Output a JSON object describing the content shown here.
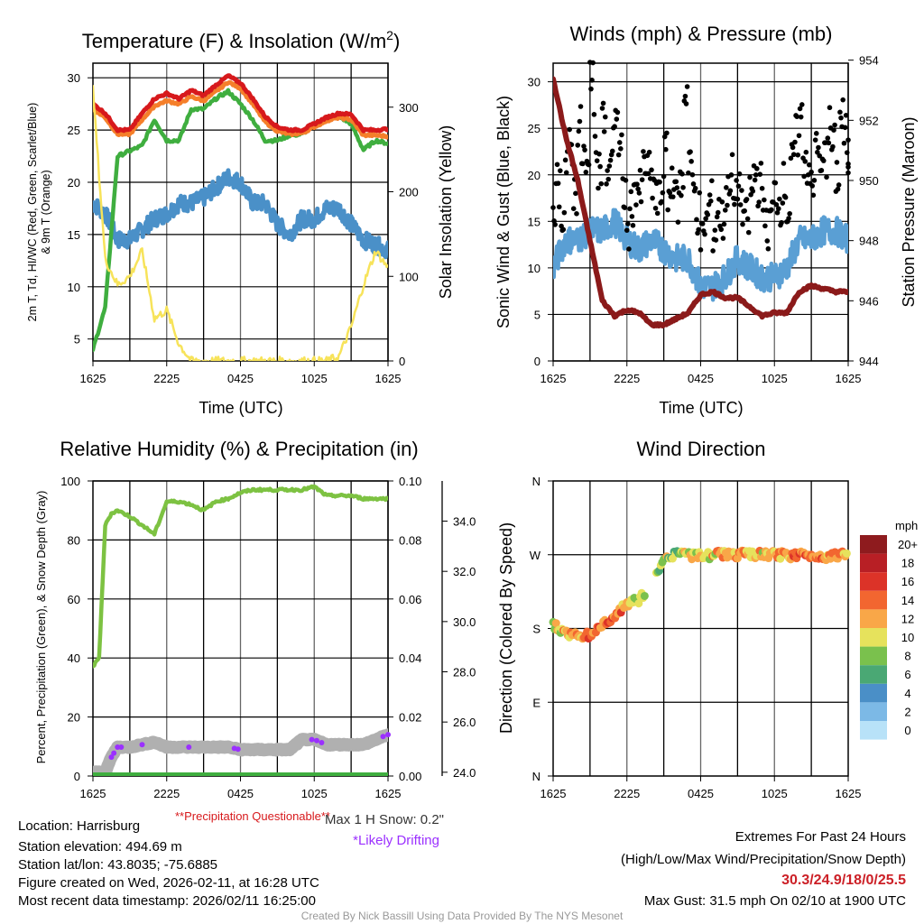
{
  "titles": {
    "temp": "Temperature (F) & Insolation (W/m",
    "temp_sup": "2",
    "temp_end": ")",
    "winds": "Winds (mph) & Pressure (mb)",
    "rh": "Relative Humidity (%) & Precipitation (in)",
    "wdir": "Wind Direction"
  },
  "axis_labels": {
    "time": "Time (UTC)",
    "temp_left_1": "2m T, Td, HI/WC (Red, Green, Scarlet/Blue)",
    "temp_left_2": "& 9m T (Orange)",
    "temp_right": "Solar Insolation (Yellow)",
    "wind_left": "Sonic Wind & Gust (Blue, Black)",
    "wind_right": "Station Pressure (Maroon)",
    "rh_left": "Percent, Precipitation (Green), & Snow Depth (Gray)",
    "wdir_left": "Direction (Colored By Speed)"
  },
  "notes": {
    "precip_questionable": "**Precipitation Questionable**",
    "max_snow": "Max 1 H Snow: 0.2\"",
    "drifting": "*Likely Drifting"
  },
  "info": {
    "location": "Location: Harrisburg",
    "elevation": "Station elevation: 494.69 m",
    "latlon": "Station lat/lon: 43.8035; -75.6885",
    "created": "Figure created on Wed, 2026-02-11, at 16:28 UTC",
    "recent": "Most recent data timestamp: 2026/02/11 16:25:00"
  },
  "extremes": {
    "heading": "Extremes For Past 24 Hours",
    "legend": "(High/Low/Max Wind/Precipitation/Snow Depth)",
    "values": "30.3/24.9/18/0/25.5",
    "max_gust": "Max Gust: 31.5 mph On 02/10 at 1900 UTC"
  },
  "credit": "Created By Nick Bassill Using Data Provided By The NYS Mesonet",
  "colors": {
    "temp2m": "#d7191c",
    "temp9m": "#f57f2a",
    "dewpoint": "#3fae3f",
    "windchill": "#4a90c8",
    "insolation": "#f7e35a",
    "wind": "#5a9fd4",
    "gust": "#000000",
    "pressure": "#8b1a1a",
    "rh": "#7dc242",
    "snow": "#b0b0b0",
    "drift": "#9b30ff",
    "precip": "#3fae3f",
    "extremes": "#cc2027"
  },
  "chart_data": [
    {
      "type": "line",
      "name": "temperature",
      "x_hours_since_start": [
        0,
        1,
        2,
        3,
        4,
        5,
        6,
        7,
        8,
        9,
        10,
        11,
        12,
        13,
        14,
        15,
        16,
        17,
        18,
        19,
        20,
        21,
        22,
        23,
        24
      ],
      "x_tick_labels": [
        "1625",
        "2225",
        "0425",
        "1025",
        "1625"
      ],
      "ylim": [
        2.9,
        31.4
      ],
      "y_ticks": [
        5,
        10,
        15,
        20,
        25,
        30
      ],
      "y2lim": [
        0,
        352
      ],
      "y2_ticks": [
        0,
        100,
        200,
        300
      ],
      "series": [
        {
          "name": "2m T",
          "color": "#d7191c",
          "values": [
            27.5,
            26.6,
            25,
            25,
            26.6,
            28,
            28.5,
            28,
            28.8,
            28.3,
            29.3,
            30.2,
            29.5,
            28,
            26.3,
            25.3,
            25,
            25,
            25.6,
            26.2,
            26.6,
            26.5,
            25,
            25,
            25.1
          ]
        },
        {
          "name": "9m T",
          "color": "#f57f2a",
          "values": [
            27,
            26.2,
            24.6,
            24.6,
            26,
            27.3,
            27.8,
            27.5,
            28.2,
            27.8,
            28.7,
            29.6,
            29,
            27.5,
            25.8,
            24.9,
            24.6,
            24.7,
            25.3,
            25.9,
            26.2,
            26,
            24.5,
            24.5,
            24.4
          ]
        },
        {
          "name": "Td",
          "color": "#3fae3f",
          "values": [
            4,
            8,
            22.5,
            23,
            23.5,
            26,
            24,
            24,
            27,
            27,
            28,
            28.7,
            27.5,
            26,
            24,
            24,
            24.5,
            24.6,
            25.5,
            26,
            26.3,
            25.6,
            23.1,
            24,
            23.7
          ]
        },
        {
          "name": "HI/WC",
          "color": "#4a90c8",
          "values": [
            18,
            17,
            14.5,
            14.5,
            15.5,
            16.5,
            17,
            18,
            18,
            18.5,
            19.5,
            20.5,
            20,
            18,
            18,
            16,
            15,
            16.5,
            16.5,
            17.5,
            17.5,
            16,
            14.5,
            14,
            13.5
          ]
        },
        {
          "name": "Solar Insolation",
          "axis": "right",
          "color": "#f7e35a",
          "values": [
            320,
            120,
            90,
            100,
            130,
            50,
            60,
            20,
            0,
            0,
            0,
            0,
            0,
            0,
            0,
            0,
            0,
            0,
            0,
            0,
            5,
            40,
            90,
            130,
            110
          ]
        }
      ]
    },
    {
      "type": "line+scatter",
      "name": "winds",
      "x_hours_since_start": [
        0,
        1,
        2,
        3,
        4,
        5,
        6,
        7,
        8,
        9,
        10,
        11,
        12,
        13,
        14,
        15,
        16,
        17,
        18,
        19,
        20,
        21,
        22,
        23,
        24
      ],
      "x_tick_labels": [
        "1625",
        "2225",
        "0425",
        "1025",
        "1625"
      ],
      "ylim": [
        0,
        32
      ],
      "y_ticks": [
        0,
        5,
        10,
        15,
        20,
        25,
        30
      ],
      "y2lim": [
        944,
        953.9
      ],
      "y2_ticks": [
        944,
        946,
        948,
        950,
        952,
        954
      ],
      "series": [
        {
          "name": "Sonic Wind",
          "color": "#5a9fd4",
          "values": [
            10,
            13,
            13,
            14,
            14,
            15,
            13,
            12,
            13,
            12,
            11,
            11,
            8,
            8,
            9,
            11,
            10,
            9,
            9,
            10,
            13,
            13,
            14,
            14,
            13
          ]
        },
        {
          "name": "Station Pressure",
          "axis": "right",
          "color": "#8b1a1a",
          "values": [
            953.4,
            951.5,
            950,
            948,
            946,
            945.5,
            945.7,
            945.6,
            945.2,
            945.2,
            945.4,
            945.6,
            946.2,
            946.3,
            946.1,
            946.1,
            945.8,
            945.5,
            945.6,
            945.6,
            946.3,
            946.5,
            946.4,
            946.3,
            946.3
          ]
        }
      ],
      "gust_every_20min": [
        17,
        19,
        16,
        21,
        23,
        18,
        25,
        22,
        20,
        31.5,
        24,
        21,
        26,
        19,
        23,
        27,
        22,
        18,
        14,
        17,
        19,
        18,
        21,
        20,
        19,
        17,
        18,
        22,
        18,
        20,
        17,
        19,
        29,
        22,
        18,
        16,
        13,
        15,
        17,
        14,
        16,
        15,
        18,
        20,
        17,
        19,
        16,
        15,
        18,
        20,
        19,
        17,
        14,
        16,
        18,
        17,
        19,
        16,
        21,
        24,
        26,
        22,
        21,
        18,
        24,
        20,
        22,
        25,
        23,
        20,
        26,
        24,
        22
      ]
    },
    {
      "type": "line",
      "name": "humidity",
      "x_hours_since_start": [
        0,
        0.5,
        1,
        1.5,
        2,
        3,
        4,
        5,
        6,
        7,
        8,
        9,
        10,
        11,
        12,
        13,
        14,
        15,
        16,
        17,
        18,
        19,
        20,
        21,
        22,
        23,
        24
      ],
      "x_tick_labels": [
        "1625",
        "2225",
        "0425",
        "1025",
        "1625"
      ],
      "ylim": [
        0,
        100
      ],
      "y_ticks": [
        0,
        20,
        40,
        60,
        80,
        100
      ],
      "y2lim": [
        0,
        0.1
      ],
      "y2_ticks": [
        "0.00",
        "0.02",
        "0.04",
        "0.06",
        "0.08",
        "0.10"
      ],
      "y3_ticks": [
        "24.0",
        "26.0",
        "28.0",
        "30.0",
        "32.0",
        "34.0"
      ],
      "series": [
        {
          "name": "Relative Humidity",
          "color": "#7dc242",
          "values": [
            37,
            40,
            85,
            89,
            90,
            88,
            85,
            82,
            93,
            93,
            92,
            90,
            93,
            94,
            96,
            97,
            97,
            97,
            97,
            97,
            98,
            95,
            95,
            95,
            94,
            94,
            94
          ]
        },
        {
          "name": "Snow Depth",
          "axis": "snow",
          "color": "#b0b0b0",
          "values": [
            24.0,
            24.0,
            24.0,
            24.6,
            25,
            25,
            25.1,
            25.2,
            25,
            25,
            25,
            25,
            25,
            25,
            24.9,
            24.9,
            24.9,
            24.9,
            24.9,
            25.3,
            25.3,
            25.1,
            25.1,
            25.1,
            25.1,
            25.3,
            25.5
          ]
        },
        {
          "name": "Precipitation",
          "axis": "precip",
          "color": "#3fae3f",
          "values": [
            0,
            0,
            0,
            0,
            0,
            0,
            0,
            0,
            0,
            0,
            0,
            0,
            0,
            0,
            0,
            0,
            0,
            0,
            0,
            0,
            0,
            0,
            0,
            0,
            0,
            0,
            0
          ]
        }
      ],
      "drifting_hours": [
        1.5,
        1.7,
        2.0,
        2.3,
        4.0,
        7.8,
        11.5,
        11.8,
        17.8,
        18.2,
        18.6,
        23.6,
        24.0
      ]
    },
    {
      "type": "scatter",
      "name": "wind_direction",
      "x_hours_since_start": [
        0,
        1,
        2,
        3,
        4,
        5,
        6,
        7,
        8,
        9,
        10,
        11,
        12,
        13,
        14,
        15,
        16,
        17,
        18,
        19,
        20,
        21,
        22,
        23,
        24
      ],
      "x_tick_labels": [
        "1625",
        "2225",
        "0425",
        "1025",
        "1625"
      ],
      "y_ticks": [
        "N",
        "E",
        "S",
        "W",
        "N"
      ],
      "ylim": [
        0,
        360
      ],
      "direction_deg": [
        185,
        175,
        170,
        172,
        185,
        195,
        210,
        215,
        232,
        262,
        273,
        270,
        268,
        270,
        271,
        270,
        270,
        270,
        270,
        269,
        270,
        269,
        268,
        270,
        270
      ],
      "speed_mph": [
        11,
        12,
        13,
        14,
        15,
        15,
        13,
        11,
        11,
        10,
        9,
        11,
        12,
        12,
        13,
        13,
        12,
        12,
        13,
        14,
        15,
        15,
        14,
        14,
        13
      ],
      "colorbar": {
        "title": "mph",
        "labels": [
          "20+",
          "18",
          "16",
          "14",
          "12",
          "10",
          "8",
          "6",
          "4",
          "2",
          "0"
        ],
        "colors": [
          "#8e1b1e",
          "#b81f25",
          "#dc3328",
          "#f26630",
          "#f9a748",
          "#e6e25c",
          "#7ac14d",
          "#4aa874",
          "#4a8fc7",
          "#7cb9e6",
          "#b8e2f8"
        ]
      }
    }
  ]
}
